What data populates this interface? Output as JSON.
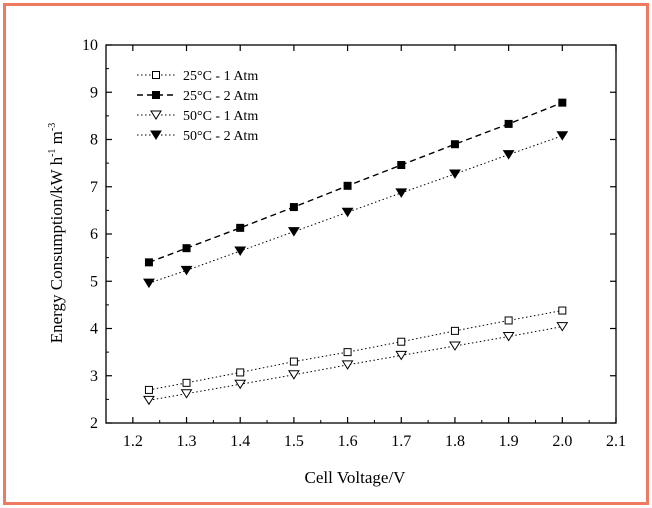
{
  "colors": {
    "frame": "#ee7b5f",
    "ink": "#000000",
    "background": "#ffffff"
  },
  "chart_data": {
    "type": "line",
    "title": "",
    "xlabel": "Cell Voltage/V",
    "ylabel": {
      "prefix": "Energy Consumption/kW h",
      "sup1": "-1",
      "middle": " m",
      "sup2": "-3"
    },
    "xlim": [
      1.15,
      2.1
    ],
    "ylim": [
      2,
      10
    ],
    "x_ticks": [
      1.2,
      1.3,
      1.4,
      1.5,
      1.6,
      1.7,
      1.8,
      1.9,
      2.0,
      2.1
    ],
    "x_tick_labels": [
      "1.2",
      "1.3",
      "1.4",
      "1.5",
      "1.6",
      "1.7",
      "1.8",
      "1.9",
      "2.0",
      "2.1"
    ],
    "y_ticks": [
      2,
      3,
      4,
      5,
      6,
      7,
      8,
      9,
      10
    ],
    "y_tick_labels": [
      "2",
      "3",
      "4",
      "5",
      "6",
      "7",
      "8",
      "9",
      "10"
    ],
    "grid": false,
    "legend_position": "top-left",
    "x": [
      1.23,
      1.3,
      1.4,
      1.5,
      1.6,
      1.7,
      1.8,
      1.9,
      2.0
    ],
    "series": [
      {
        "name": "25°C - 1 Atm",
        "marker": "square-open",
        "line": "dotted",
        "values": [
          2.7,
          2.85,
          3.07,
          3.3,
          3.5,
          3.72,
          3.95,
          4.17,
          4.38
        ]
      },
      {
        "name": "25°C - 2 Atm",
        "marker": "square-filled",
        "line": "dashed",
        "values": [
          5.4,
          5.7,
          6.13,
          6.57,
          7.02,
          7.46,
          7.9,
          8.33,
          8.78
        ]
      },
      {
        "name": "50°C - 1 Atm",
        "marker": "triangle-down-open",
        "line": "dotted",
        "values": [
          2.48,
          2.62,
          2.82,
          3.02,
          3.23,
          3.43,
          3.63,
          3.83,
          4.04
        ]
      },
      {
        "name": "50°C - 2 Atm",
        "marker": "triangle-down-filled",
        "line": "dotted",
        "values": [
          4.96,
          5.23,
          5.64,
          6.05,
          6.46,
          6.87,
          7.27,
          7.68,
          8.08
        ]
      }
    ]
  }
}
